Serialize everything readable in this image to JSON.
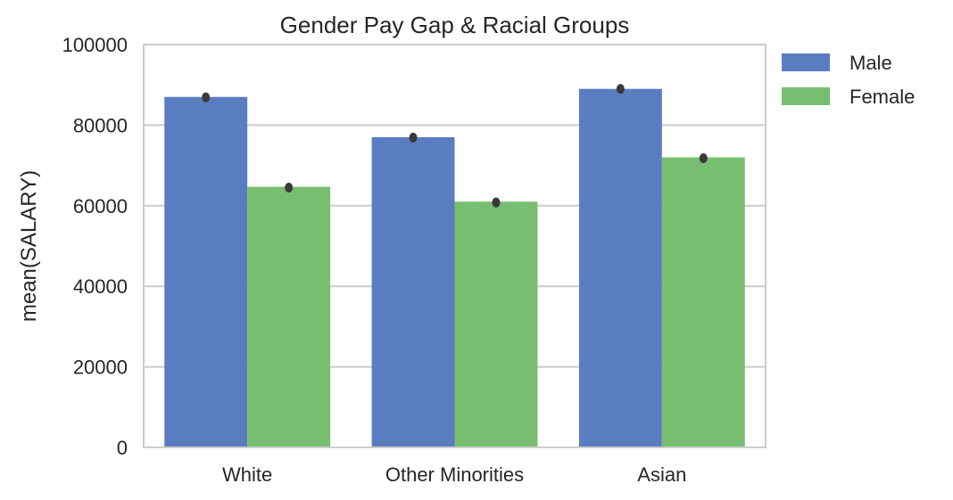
{
  "chart_data": {
    "type": "bar",
    "title": "Gender Pay Gap & Racial Groups",
    "xlabel": "",
    "ylabel": "mean(SALARY)",
    "categories": [
      "White",
      "Other Minorities",
      "Asian"
    ],
    "series": [
      {
        "name": "Male",
        "color": "#5a7dc1",
        "values": [
          87000,
          77000,
          89000
        ],
        "error_markers": [
          86900,
          76900,
          89000
        ]
      },
      {
        "name": "Female",
        "color": "#77be70",
        "values": [
          64700,
          61000,
          72000
        ],
        "error_markers": [
          64500,
          60800,
          71800
        ]
      }
    ],
    "ylim": [
      0,
      100000
    ],
    "yticks": [
      0,
      20000,
      40000,
      60000,
      80000,
      100000
    ],
    "ytick_labels": [
      "0",
      "20000",
      "40000",
      "60000",
      "80000",
      "100000"
    ],
    "grid": true,
    "legend_position": "outside-top-right",
    "error_marker_color": "#3a3a3a",
    "grid_color": "#cccccc"
  }
}
